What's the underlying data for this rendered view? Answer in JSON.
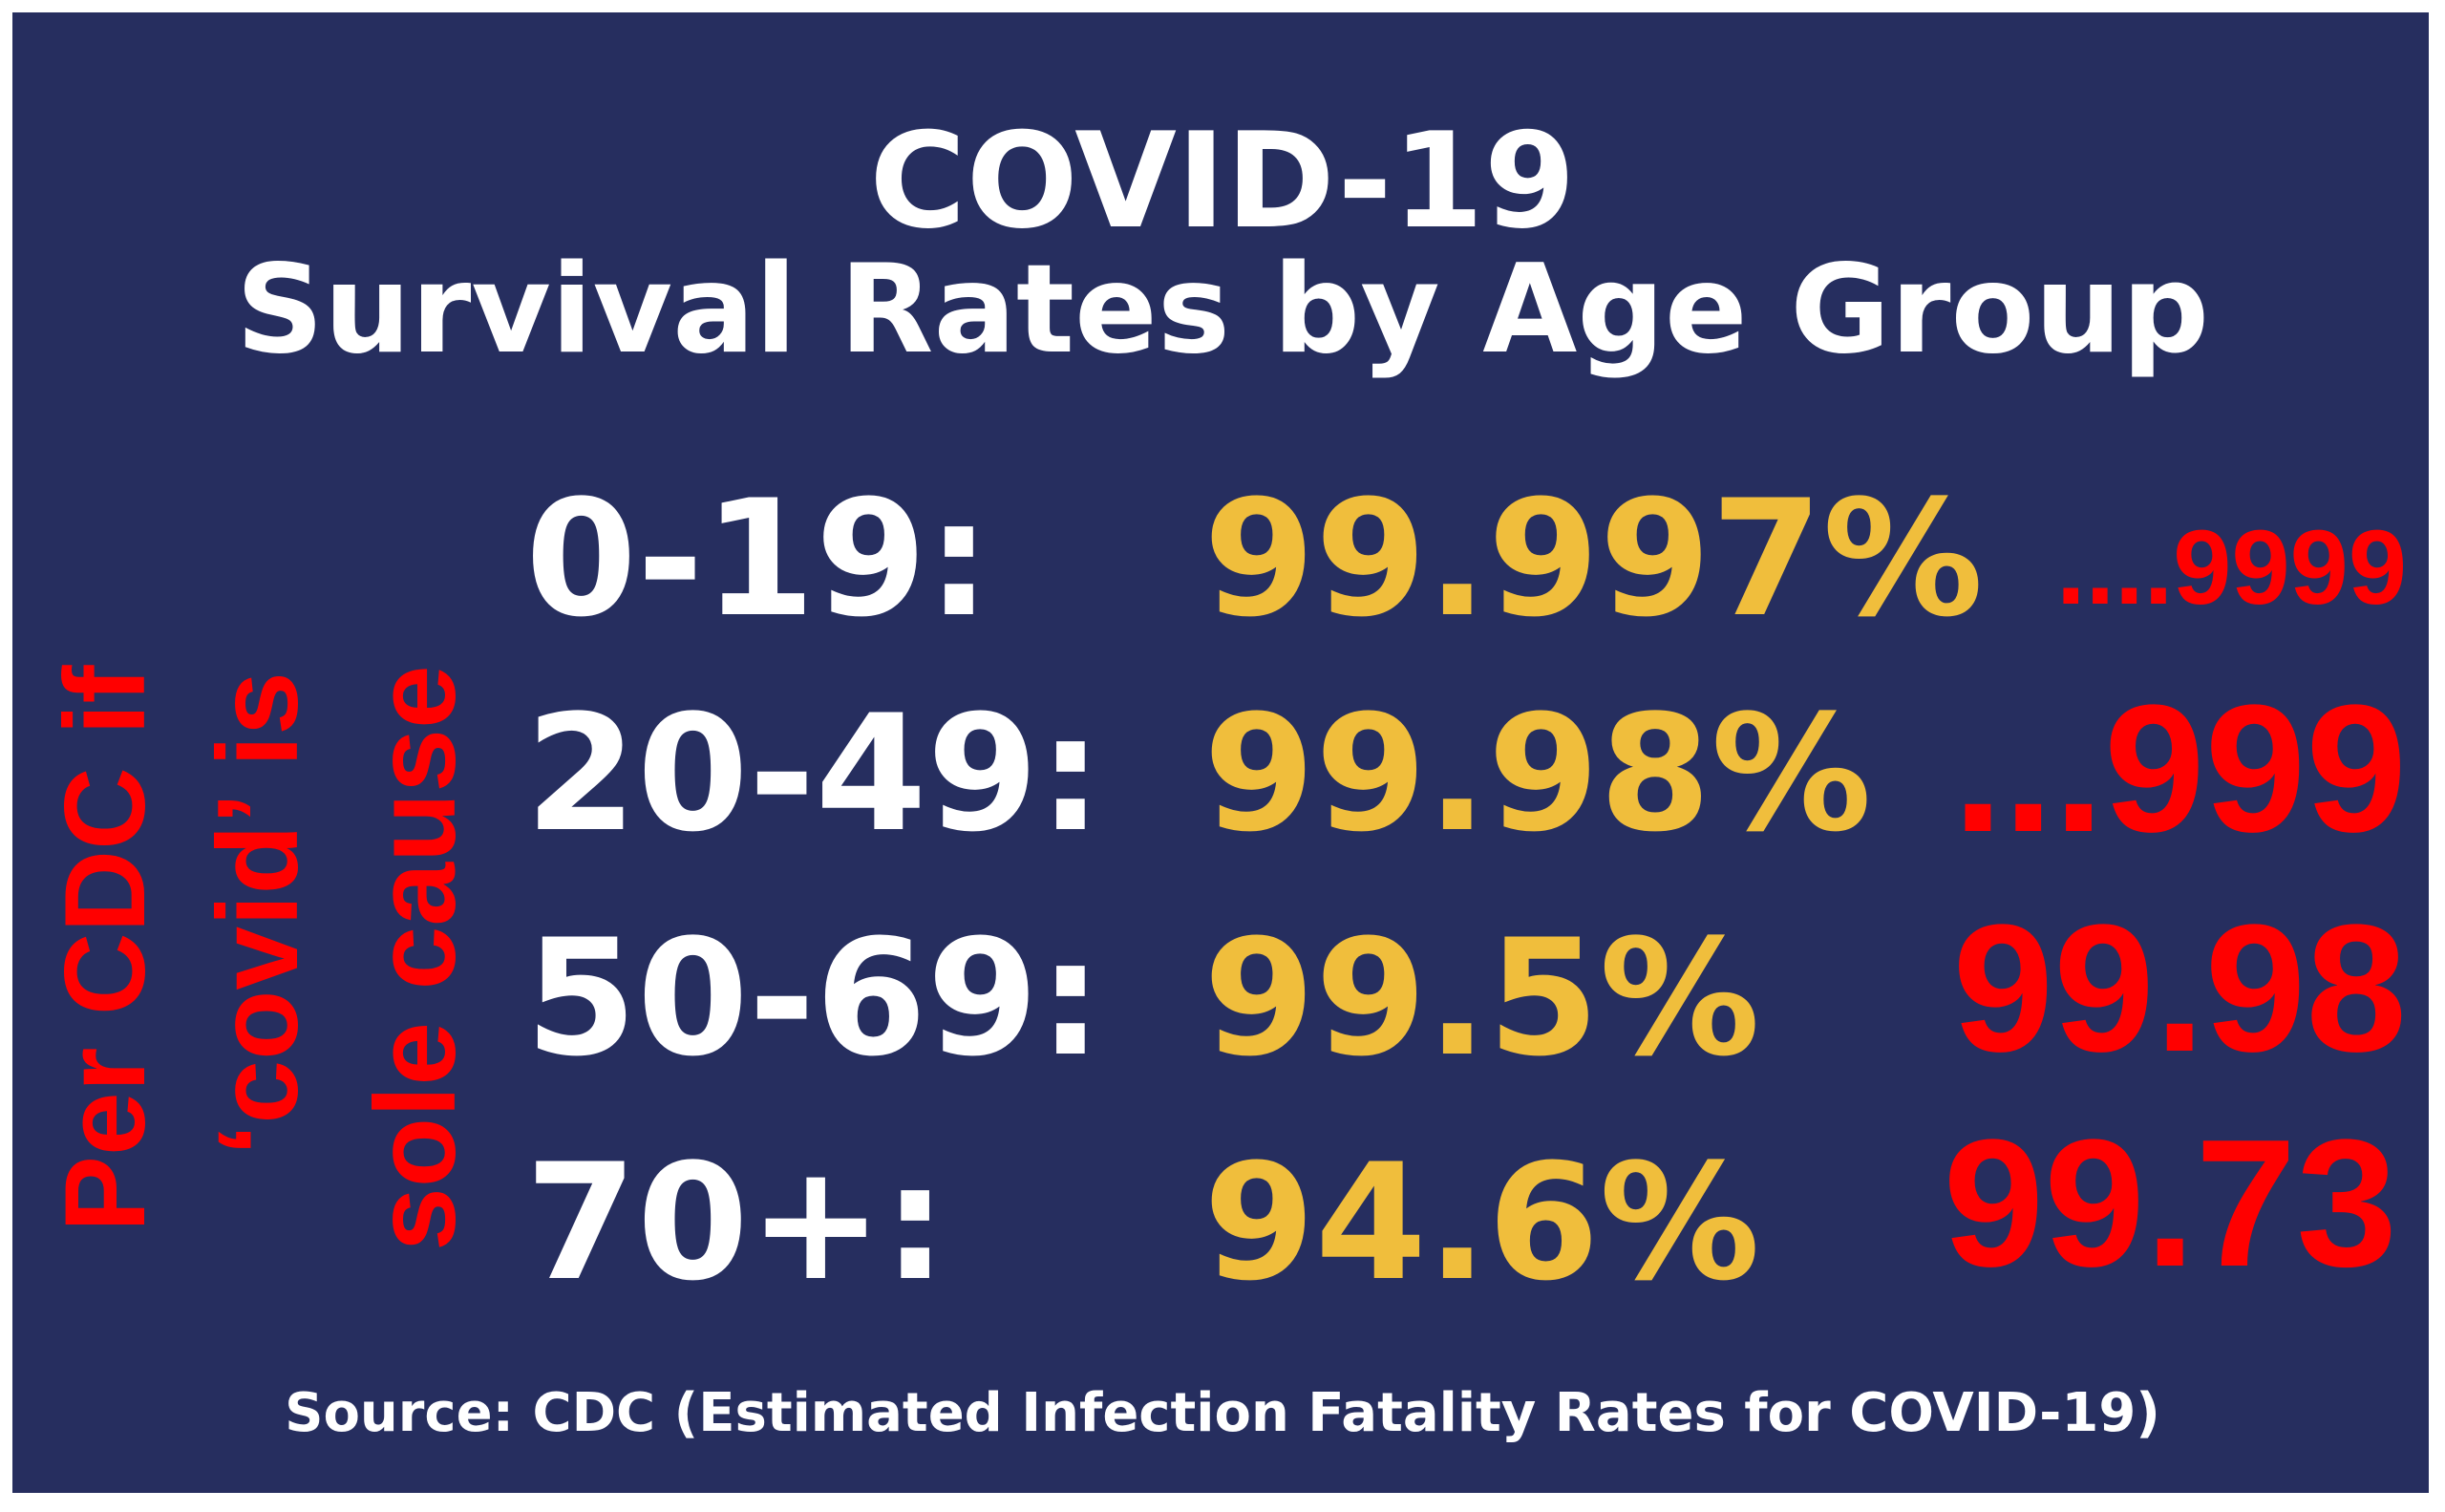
{
  "header": {
    "title_line1": "COVID-19",
    "title_line2": "Survival Rates by Age Group"
  },
  "rows": [
    {
      "age": "0-19:",
      "rate": "99.997%",
      "note": "....9999"
    },
    {
      "age": "20-49:",
      "rate": "99.98%",
      "note": "...999"
    },
    {
      "age": "50-69:",
      "rate": "99.5%",
      "note": "99.98"
    },
    {
      "age": "70+:",
      "rate": "94.6%",
      "note": "99.73"
    }
  ],
  "annotation": {
    "line1": "Per CDC if",
    "line2": "‘covid’ is",
    "line3": "sole cause"
  },
  "footer": {
    "source": "Source: CDC (Estimated Infection Fatality Rates for COVID-19)"
  },
  "colors": {
    "background": "#262e5f",
    "title": "#ffffff",
    "rate": "#f0be3c",
    "annotation": "#ff0000"
  }
}
